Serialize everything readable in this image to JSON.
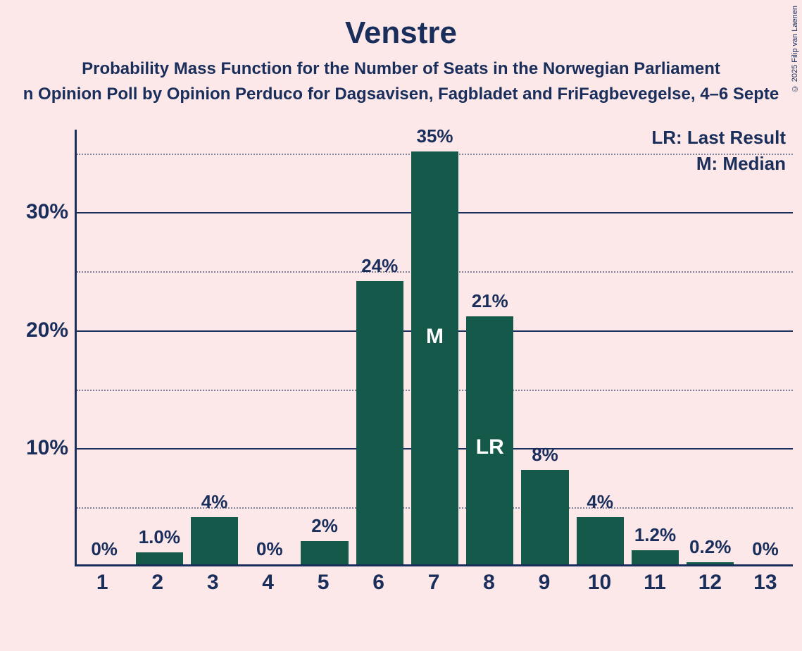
{
  "copyright": "© 2025 Filip van Laenen",
  "title": "Venstre",
  "subtitle1": "Probability Mass Function for the Number of Seats in the Norwegian Parliament",
  "subtitle2": "n Opinion Poll by Opinion Perduco for Dagsavisen, Fagbladet and FriFagbevegelse, 4–6 Septe",
  "legend": {
    "lr": "LR: Last Result",
    "m": "M: Median"
  },
  "chart": {
    "type": "bar",
    "background_color": "#fce8e8",
    "bar_color": "#15594a",
    "axis_color": "#1a2e5c",
    "text_color": "#1a2e5c",
    "grid_dotted_color": "#1a2e5c",
    "ylim_max_percent": 37,
    "y_major_ticks": [
      10,
      20,
      30
    ],
    "y_minor_ticks": [
      5,
      15,
      25,
      35
    ],
    "bar_width_ratio": 0.86,
    "title_fontsize": 44,
    "subtitle_fontsize": 24,
    "tick_fontsize": 30,
    "barlabel_fontsize": 26,
    "categories": [
      "1",
      "2",
      "3",
      "4",
      "5",
      "6",
      "7",
      "8",
      "9",
      "10",
      "11",
      "12",
      "13"
    ],
    "values_percent": [
      0,
      1.0,
      4,
      0,
      2,
      24,
      35,
      21,
      8,
      4,
      1.2,
      0.2,
      0
    ],
    "value_labels": [
      "0%",
      "1.0%",
      "4%",
      "0%",
      "2%",
      "24%",
      "35%",
      "21%",
      "8%",
      "4%",
      "1.2%",
      "0.2%",
      "0%"
    ],
    "median_index": 6,
    "last_result_index": 7,
    "marker_M": "M",
    "marker_LR": "LR"
  }
}
